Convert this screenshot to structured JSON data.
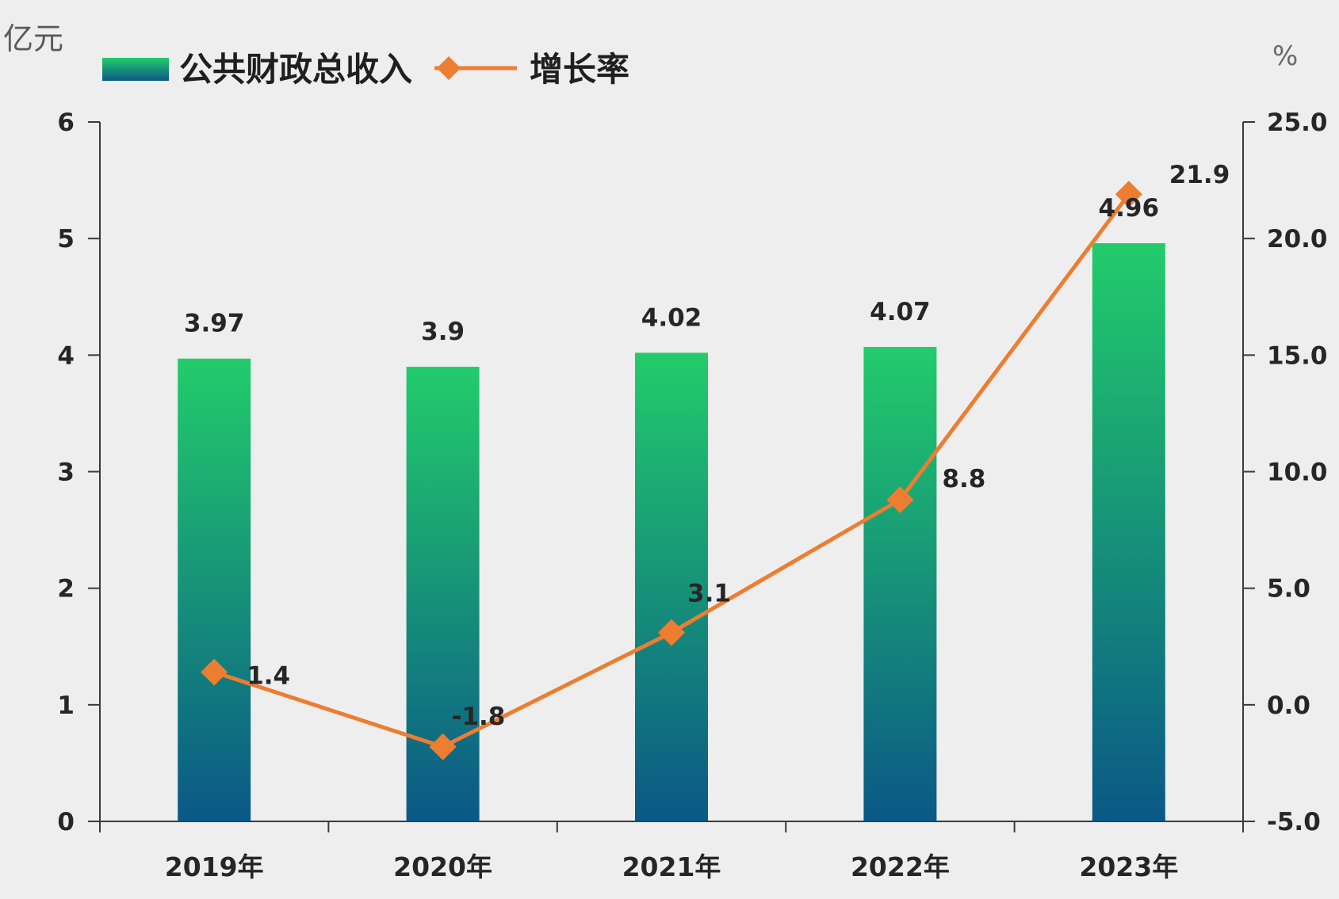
{
  "chart_data": {
    "type": "bar",
    "categories": [
      "2019年",
      "2020年",
      "2021年",
      "2022年",
      "2023年"
    ],
    "series": [
      {
        "name": "公共财政总收入",
        "type": "bar",
        "y_axis": "left",
        "values": [
          3.97,
          3.9,
          4.02,
          4.07,
          4.96
        ],
        "data_labels": [
          "3.97",
          "3.9",
          "4.02",
          "4.07",
          "4.96"
        ],
        "color_top": "#22cc6b",
        "color_bottom": "#0b5886"
      },
      {
        "name": "增长率",
        "type": "line",
        "y_axis": "right",
        "marker": "diamond",
        "values": [
          1.4,
          -1.8,
          3.1,
          8.8,
          21.9
        ],
        "data_labels": [
          "1.4",
          "-1.8",
          "3.1",
          "8.8",
          "21.9"
        ],
        "color": "#ed7d31"
      }
    ],
    "y_left": {
      "label": "亿元",
      "ylim": [
        0,
        6
      ],
      "tick_labels": [
        "0",
        "1",
        "2",
        "3",
        "4",
        "5",
        "6"
      ]
    },
    "y_right": {
      "label": "%",
      "ylim": [
        -5,
        25
      ],
      "tick_labels": [
        "-5.0",
        "0.0",
        "5.0",
        "10.0",
        "15.0",
        "20.0",
        "25.0"
      ]
    },
    "grid": false,
    "legend": "top-left"
  },
  "colors": {
    "background": "#eeeeee",
    "axis": "#3a3a3a"
  }
}
